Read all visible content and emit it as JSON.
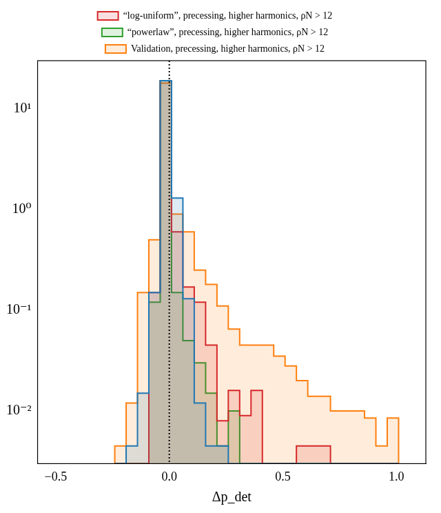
{
  "chart_data": {
    "type": "histogram",
    "bins": [
      -0.24,
      -0.19,
      -0.14,
      -0.09,
      -0.04,
      0.01,
      0.06,
      0.11,
      0.16,
      0.21,
      0.26,
      0.31,
      0.36,
      0.41,
      0.46,
      0.51,
      0.56,
      0.61,
      0.66,
      0.71,
      0.76,
      0.81,
      0.86,
      0.91,
      0.96,
      1.01
    ],
    "series": [
      {
        "name": "Validation, precessing, higher harmonics, ρN > 12",
        "color": "#ff7f0e",
        "values": [
          0.0045,
          0.012,
          0.15,
          0.5,
          18,
          0.9,
          0.6,
          0.25,
          0.18,
          0.11,
          0.065,
          0.045,
          0.045,
          0.045,
          0.035,
          0.028,
          0.02,
          0.014,
          0.014,
          0.01,
          0.01,
          0.01,
          0.0085,
          0.0045,
          0.0085
        ]
      },
      {
        "name": "“powerlaw”, precessing, higher harmonics, ρN > 12",
        "color": "#2ca02c",
        "values": [
          null,
          null,
          null,
          0.12,
          19,
          0.15,
          0.05,
          0.03,
          0.015,
          0.0045,
          0.01,
          null,
          null,
          null,
          null,
          null,
          null,
          null,
          null,
          null,
          null,
          null,
          null,
          null,
          null
        ]
      },
      {
        "name": "“log-uniform”, precessing, higher harmonics, ρN > 12",
        "color": "#d62728",
        "values": [
          null,
          null,
          null,
          0.15,
          19,
          0.6,
          0.17,
          0.12,
          0.045,
          0.008,
          0.016,
          0.009,
          0.016,
          null,
          null,
          null,
          0.0045,
          0.0045,
          0.0045,
          null,
          null,
          null,
          null,
          null,
          null
        ]
      },
      {
        "color": "#1f77b4",
        "values": [
          null,
          0.0045,
          0.015,
          0.15,
          19,
          1.3,
          0.13,
          0.012,
          0.0045,
          0.0045,
          null,
          null,
          null,
          null,
          null,
          null,
          null,
          null,
          null,
          null,
          null,
          null,
          null,
          null,
          null
        ]
      }
    ],
    "xlabel": "Δp_det",
    "xlim": [
      -0.58,
      1.13
    ],
    "xticks": [
      {
        "value": -0.5,
        "label": "−0.5"
      },
      {
        "value": 0,
        "label": "0.0"
      },
      0.5,
      {
        "value": 1,
        "label": "1.0"
      }
    ],
    "ylim": [
      0.003,
      30
    ],
    "yticks": [
      {
        "value": 0.01,
        "label": "10⁻²"
      },
      {
        "value": 0.1,
        "label": "10⁻¹"
      },
      {
        "value": 1,
        "label": "10⁰"
      },
      {
        "value": 10,
        "label": "10¹"
      }
    ],
    "log": "y",
    "grid": false,
    "legend": "top",
    "vlines": [
      0
    ]
  }
}
